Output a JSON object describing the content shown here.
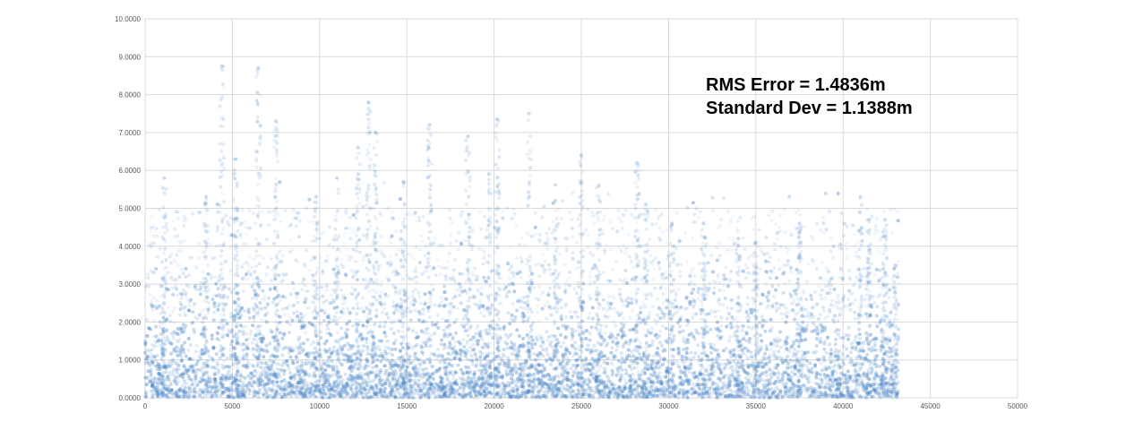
{
  "chart_data": {
    "type": "scatter",
    "title": "",
    "xlabel": "",
    "ylabel": "",
    "xlim": [
      0,
      50000
    ],
    "ylim": [
      0,
      10
    ],
    "grid": true,
    "legend": "none",
    "x_ticks": [
      "0",
      "5000",
      "10000",
      "15000",
      "20000",
      "25000",
      "30000",
      "35000",
      "40000",
      "45000",
      "50000"
    ],
    "y_ticks": [
      "0.0000",
      "1.0000",
      "2.0000",
      "3.0000",
      "4.0000",
      "5.0000",
      "6.0000",
      "7.0000",
      "8.0000",
      "9.0000",
      "10.0000"
    ],
    "annotations": [
      "RMS Error = 1.4836m",
      "Standard Dev = 1.1388m"
    ],
    "marker_color": "#4a86c8",
    "series": [
      {
        "x": [
          0,
          5000,
          10000,
          15000,
          20000,
          25000,
          30000,
          35000,
          40000,
          43000
        ],
        "y": [
          1.2,
          1.4,
          1.3,
          1.5,
          1.6,
          1.5,
          1.2,
          1.3,
          1.1,
          1.4
        ],
        "x_range": [
          0,
          43200
        ],
        "typical_value": 1.2,
        "peaks": [
          [
            4400,
            8.75
          ],
          [
            6500,
            8.7
          ],
          [
            7500,
            7.3
          ],
          [
            12800,
            7.8
          ],
          [
            13200,
            7.0
          ],
          [
            16300,
            7.2
          ],
          [
            18500,
            6.9
          ],
          [
            20200,
            7.35
          ],
          [
            22000,
            7.5
          ],
          [
            25000,
            6.4
          ],
          [
            28200,
            6.2
          ],
          [
            5200,
            6.3
          ],
          [
            1100,
            5.8
          ],
          [
            3500,
            5.3
          ],
          [
            9800,
            5.3
          ],
          [
            11000,
            5.8
          ],
          [
            12200,
            6.6
          ],
          [
            14800,
            5.7
          ],
          [
            19700,
            5.9
          ],
          [
            23500,
            5.2
          ],
          [
            26000,
            5.6
          ],
          [
            28700,
            5.1
          ],
          [
            30200,
            4.6
          ],
          [
            32000,
            4.6
          ],
          [
            34000,
            4.2
          ],
          [
            35000,
            4.1
          ],
          [
            37500,
            4.6
          ],
          [
            41000,
            5.3
          ],
          [
            41500,
            4.7
          ],
          [
            42400,
            4.7
          ],
          [
            43000,
            3.5
          ]
        ]
      }
    ]
  }
}
